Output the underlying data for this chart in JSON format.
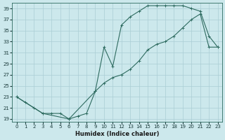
{
  "xlabel": "Humidex (Indice chaleur)",
  "background_color": "#cce8ec",
  "grid_color": "#aacdd4",
  "line_color": "#2e6b60",
  "marker": "+",
  "line1_x": [
    0,
    1,
    2,
    3,
    4,
    5,
    6,
    7,
    8,
    9,
    10,
    11,
    12,
    13,
    14,
    15,
    16,
    17,
    18,
    19,
    20,
    21,
    22,
    23
  ],
  "line1_y": [
    23,
    22,
    21,
    20,
    20,
    20,
    19,
    19.5,
    20,
    24,
    32,
    28.5,
    36,
    37.5,
    38.5,
    39.5,
    39.5,
    39.5,
    39.5,
    39.5,
    39,
    38.5,
    34,
    32
  ],
  "line2_x": [
    0,
    3,
    6,
    9,
    10,
    11,
    12,
    13,
    14,
    15,
    16,
    17,
    18,
    19,
    20,
    21,
    22,
    23
  ],
  "line2_y": [
    23,
    20,
    19,
    24,
    25.5,
    26.5,
    27,
    28,
    29.5,
    31.5,
    32.5,
    33,
    34,
    35.5,
    37,
    38,
    32,
    32
  ],
  "xlim": [
    -0.5,
    23.5
  ],
  "ylim": [
    18.5,
    40
  ],
  "yticks": [
    19,
    21,
    23,
    25,
    27,
    29,
    31,
    33,
    35,
    37,
    39
  ],
  "xticks": [
    0,
    1,
    2,
    3,
    4,
    5,
    6,
    7,
    8,
    9,
    10,
    11,
    12,
    13,
    14,
    15,
    16,
    17,
    18,
    19,
    20,
    21,
    22,
    23
  ],
  "tick_fontsize": 5,
  "xlabel_fontsize": 6,
  "linewidth": 0.8,
  "markersize": 3,
  "markeredgewidth": 0.7
}
